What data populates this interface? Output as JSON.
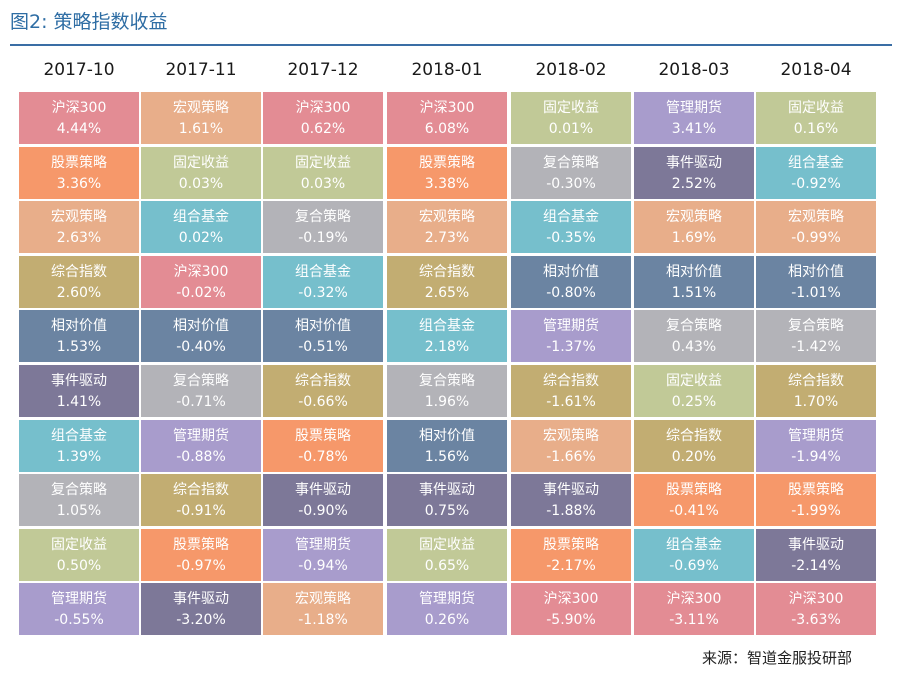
{
  "title": "图2: 策略指数收益",
  "source": "来源：智道金服投研部",
  "colors": {
    "沪深300": "#e38c94",
    "股票策略": "#f6986a",
    "宏观策略": "#e8ae8a",
    "综合指数": "#c2ad72",
    "相对价值": "#6b84a2",
    "事件驱动": "#7d7898",
    "组合基金": "#76bfcc",
    "复合策略": "#b3b3b8",
    "固定收益": "#c1c997",
    "管理期货": "#a89ccc"
  },
  "chart_data": {
    "type": "table",
    "title": "图2: 策略指数收益",
    "columns": [
      {
        "period": "2017-10",
        "rows": [
          {
            "name": "沪深300",
            "value": "4.44%"
          },
          {
            "name": "股票策略",
            "value": "3.36%"
          },
          {
            "name": "宏观策略",
            "value": "2.63%"
          },
          {
            "name": "综合指数",
            "value": "2.60%"
          },
          {
            "name": "相对价值",
            "value": "1.53%"
          },
          {
            "name": "事件驱动",
            "value": "1.41%"
          },
          {
            "name": "组合基金",
            "value": "1.39%"
          },
          {
            "name": "复合策略",
            "value": "1.05%"
          },
          {
            "name": "固定收益",
            "value": "0.50%"
          },
          {
            "name": "管理期货",
            "value": "-0.55%"
          }
        ]
      },
      {
        "period": "2017-11",
        "rows": [
          {
            "name": "宏观策略",
            "value": "1.61%"
          },
          {
            "name": "固定收益",
            "value": "0.03%"
          },
          {
            "name": "组合基金",
            "value": "0.02%"
          },
          {
            "name": "沪深300",
            "value": "-0.02%"
          },
          {
            "name": "相对价值",
            "value": "-0.40%"
          },
          {
            "name": "复合策略",
            "value": "-0.71%"
          },
          {
            "name": "管理期货",
            "value": "-0.88%"
          },
          {
            "name": "综合指数",
            "value": "-0.91%"
          },
          {
            "name": "股票策略",
            "value": "-0.97%"
          },
          {
            "name": "事件驱动",
            "value": "-3.20%"
          }
        ]
      },
      {
        "period": "2017-12",
        "rows": [
          {
            "name": "沪深300",
            "value": "0.62%"
          },
          {
            "name": "固定收益",
            "value": "0.03%"
          },
          {
            "name": "复合策略",
            "value": "-0.19%"
          },
          {
            "name": "组合基金",
            "value": "-0.32%"
          },
          {
            "name": "相对价值",
            "value": "-0.51%"
          },
          {
            "name": "综合指数",
            "value": "-0.66%"
          },
          {
            "name": "股票策略",
            "value": "-0.78%"
          },
          {
            "name": "事件驱动",
            "value": "-0.90%"
          },
          {
            "name": "管理期货",
            "value": "-0.94%"
          },
          {
            "name": "宏观策略",
            "value": "-1.18%"
          }
        ]
      },
      {
        "period": "2018-01",
        "rows": [
          {
            "name": "沪深300",
            "value": "6.08%"
          },
          {
            "name": "股票策略",
            "value": "3.38%"
          },
          {
            "name": "宏观策略",
            "value": "2.73%"
          },
          {
            "name": "综合指数",
            "value": "2.65%"
          },
          {
            "name": "组合基金",
            "value": "2.18%"
          },
          {
            "name": "复合策略",
            "value": "1.96%"
          },
          {
            "name": "相对价值",
            "value": "1.56%"
          },
          {
            "name": "事件驱动",
            "value": "0.75%"
          },
          {
            "name": "固定收益",
            "value": "0.65%"
          },
          {
            "name": "管理期货",
            "value": "0.26%"
          }
        ]
      },
      {
        "period": "2018-02",
        "rows": [
          {
            "name": "固定收益",
            "value": "0.01%"
          },
          {
            "name": "复合策略",
            "value": "-0.30%"
          },
          {
            "name": "组合基金",
            "value": "-0.35%"
          },
          {
            "name": "相对价值",
            "value": "-0.80%"
          },
          {
            "name": "管理期货",
            "value": "-1.37%"
          },
          {
            "name": "综合指数",
            "value": "-1.61%"
          },
          {
            "name": "宏观策略",
            "value": "-1.66%"
          },
          {
            "name": "事件驱动",
            "value": "-1.88%"
          },
          {
            "name": "股票策略",
            "value": "-2.17%"
          },
          {
            "name": "沪深300",
            "value": "-5.90%"
          }
        ]
      },
      {
        "period": "2018-03",
        "rows": [
          {
            "name": "管理期货",
            "value": "3.41%"
          },
          {
            "name": "事件驱动",
            "value": "2.52%"
          },
          {
            "name": "宏观策略",
            "value": "1.69%"
          },
          {
            "name": "相对价值",
            "value": "1.51%"
          },
          {
            "name": "复合策略",
            "value": "0.43%"
          },
          {
            "name": "固定收益",
            "value": "0.25%"
          },
          {
            "name": "综合指数",
            "value": "0.20%"
          },
          {
            "name": "股票策略",
            "value": "-0.41%"
          },
          {
            "name": "组合基金",
            "value": "-0.69%"
          },
          {
            "name": "沪深300",
            "value": "-3.11%"
          }
        ]
      },
      {
        "period": "2018-04",
        "rows": [
          {
            "name": "固定收益",
            "value": "0.16%"
          },
          {
            "name": "组合基金",
            "value": "-0.92%"
          },
          {
            "name": "宏观策略",
            "value": "-0.99%"
          },
          {
            "name": "相对价值",
            "value": "-1.01%"
          },
          {
            "name": "复合策略",
            "value": "-1.42%"
          },
          {
            "name": "综合指数",
            "value": "1.70%"
          },
          {
            "name": "管理期货",
            "value": "-1.94%"
          },
          {
            "name": "股票策略",
            "value": "-1.99%"
          },
          {
            "name": "事件驱动",
            "value": "-2.14%"
          },
          {
            "name": "沪深300",
            "value": "-3.63%"
          }
        ]
      }
    ]
  }
}
